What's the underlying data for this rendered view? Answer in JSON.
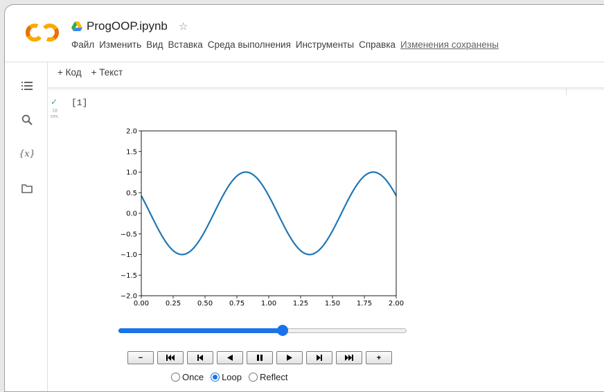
{
  "header": {
    "title": "ProgOOP.ipynb",
    "star_icon": "☆",
    "menu": [
      "Файл",
      "Изменить",
      "Вид",
      "Вставка",
      "Среда выполнения",
      "Инструменты",
      "Справка"
    ],
    "save_status": "Изменения сохранены"
  },
  "toolbar": {
    "add_code": "+ Код",
    "add_text": "+ Текст"
  },
  "sidebar": {
    "icons": [
      "toc-icon",
      "search-icon",
      "variables-icon",
      "folder-icon"
    ],
    "variables_label": "{x}"
  },
  "cell": {
    "status_icon": "✓",
    "exec_time_value": "18",
    "exec_time_unit": "сек.",
    "exec_count": "[1]"
  },
  "chart_data": {
    "type": "line",
    "title": "",
    "xlabel": "",
    "ylabel": "",
    "xlim": [
      0.0,
      2.0
    ],
    "ylim": [
      -2.0,
      2.0
    ],
    "x_ticks": [
      "0.00",
      "0.25",
      "0.50",
      "0.75",
      "1.00",
      "1.25",
      "1.50",
      "1.75",
      "2.00"
    ],
    "y_ticks": [
      "2.0",
      "1.5",
      "1.0",
      "0.5",
      "0.0",
      "−0.5",
      "−1.0",
      "−1.5",
      "−2.0"
    ],
    "series": [
      {
        "color": "#1f77b4",
        "function": "sin(2*pi*(x - 0.57))",
        "amplitude": 1.0,
        "period": 1.0,
        "phase": 0.57
      }
    ]
  },
  "animation": {
    "slider_fraction": 0.57,
    "buttons": [
      "−",
      "⏮",
      "⏮︎",
      "◀",
      "⏸",
      "▶",
      "⏭︎",
      "⏭",
      "+"
    ],
    "modes": [
      {
        "label": "Once",
        "checked": false
      },
      {
        "label": "Loop",
        "checked": true
      },
      {
        "label": "Reflect",
        "checked": false
      }
    ]
  }
}
